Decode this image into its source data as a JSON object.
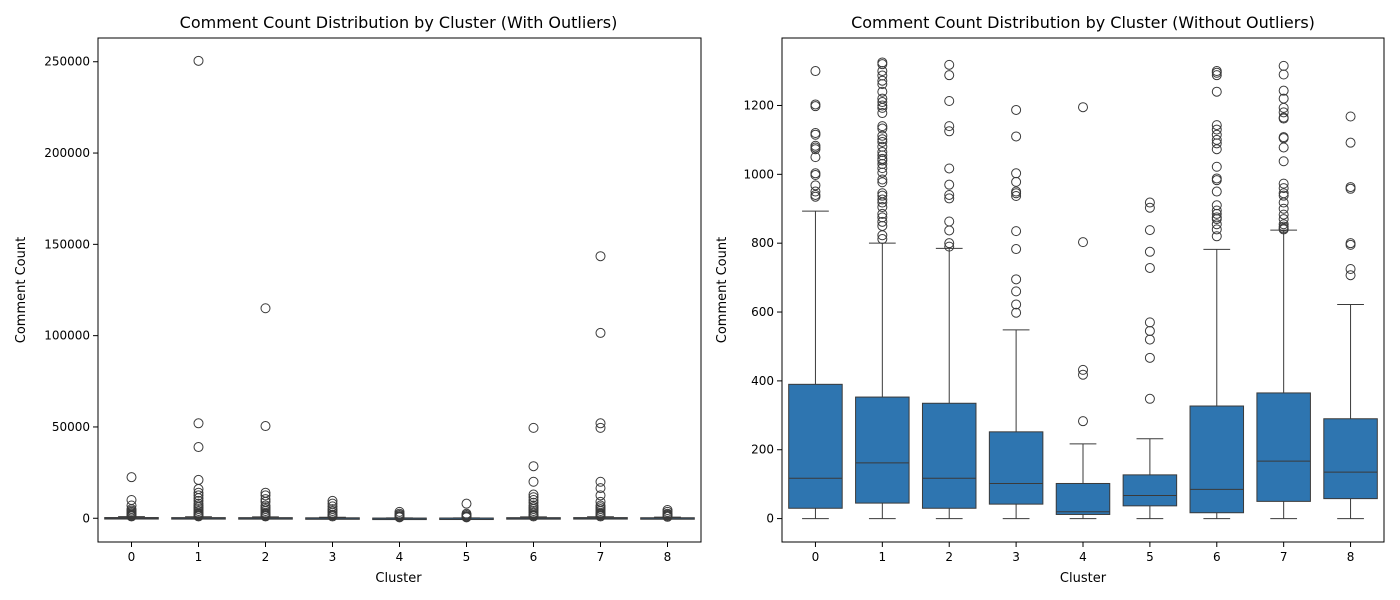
{
  "chart_data": [
    {
      "type": "box",
      "title": "Comment Count Distribution by Cluster (With Outliers)",
      "xlabel": "Cluster",
      "ylabel": "Comment Count",
      "categories": [
        "0",
        "1",
        "2",
        "3",
        "4",
        "5",
        "6",
        "7",
        "8"
      ],
      "ylim": [
        -13000,
        263000
      ],
      "yticks": [
        0,
        50000,
        100000,
        150000,
        200000,
        250000
      ],
      "ytick_labels": [
        "0",
        "50000",
        "100000",
        "150000",
        "200000",
        "250000"
      ],
      "box_color": "#2e75b0",
      "boxes": [
        {
          "min": 0,
          "q1": 30,
          "median": 117,
          "q3": 390,
          "max": 893
        },
        {
          "min": 0,
          "q1": 45,
          "median": 162,
          "q3": 353,
          "max": 800
        },
        {
          "min": 0,
          "q1": 30,
          "median": 117,
          "q3": 335,
          "max": 785
        },
        {
          "min": 0,
          "q1": 42,
          "median": 102,
          "q3": 252,
          "max": 548
        },
        {
          "min": 0,
          "q1": 12,
          "median": 20,
          "q3": 102,
          "max": 217
        },
        {
          "min": 0,
          "q1": 37,
          "median": 67,
          "q3": 127,
          "max": 232
        },
        {
          "min": 0,
          "q1": 17,
          "median": 85,
          "q3": 327,
          "max": 782
        },
        {
          "min": 0,
          "q1": 50,
          "median": 167,
          "q3": 365,
          "max": 838
        },
        {
          "min": 0,
          "q1": 58,
          "median": 135,
          "q3": 290,
          "max": 622
        }
      ],
      "outliers": [
        [
          22500,
          10000,
          7000,
          5000,
          4200,
          3500,
          2800,
          2200,
          1800,
          1400,
          1200,
          1000
        ],
        [
          250500,
          52000,
          39000,
          21000,
          16000,
          14000,
          12500,
          11000,
          9500,
          8000,
          7000,
          6000,
          5000,
          4000,
          3000,
          2500,
          2000,
          1500,
          1200,
          1000
        ],
        [
          115000,
          50500,
          14000,
          12500,
          10500,
          9000,
          7000,
          6000,
          5000,
          4000,
          3000,
          2500,
          2000,
          1500,
          1200,
          1000
        ],
        [
          9500,
          8000,
          6500,
          5000,
          4000,
          3000,
          2000,
          1500,
          1000
        ],
        [
          3500,
          2500,
          1800,
          1200,
          800,
          500
        ],
        [
          8000,
          2500,
          1800,
          1200,
          800,
          500
        ],
        [
          49500,
          28500,
          20000,
          13000,
          11500,
          10000,
          8500,
          7000,
          6000,
          5000,
          4000,
          3000,
          2000,
          1500,
          1000
        ],
        [
          143500,
          101500,
          52000,
          49500,
          20000,
          16500,
          12500,
          9000,
          7000,
          6000,
          5000,
          4000,
          3000,
          2500,
          2000,
          1500,
          1000
        ],
        [
          4500,
          3500,
          2500,
          2000,
          1500,
          1000,
          800
        ]
      ]
    },
    {
      "type": "box",
      "title": "Comment Count Distribution by Cluster (Without Outliers)",
      "xlabel": "Cluster",
      "ylabel": "Comment Count",
      "categories": [
        "0",
        "1",
        "2",
        "3",
        "4",
        "5",
        "6",
        "7",
        "8"
      ],
      "ylim": [
        -68,
        1396
      ],
      "yticks": [
        0,
        200,
        400,
        600,
        800,
        1000,
        1200
      ],
      "ytick_labels": [
        "0",
        "200",
        "400",
        "600",
        "800",
        "1000",
        "1200"
      ],
      "box_color": "#2e75b0",
      "boxes": [
        {
          "min": 0,
          "q1": 30,
          "median": 117,
          "q3": 390,
          "max": 893
        },
        {
          "min": 0,
          "q1": 45,
          "median": 162,
          "q3": 353,
          "max": 800
        },
        {
          "min": 0,
          "q1": 30,
          "median": 117,
          "q3": 335,
          "max": 785
        },
        {
          "min": 0,
          "q1": 42,
          "median": 102,
          "q3": 252,
          "max": 548
        },
        {
          "min": 0,
          "q1": 12,
          "median": 20,
          "q3": 102,
          "max": 217
        },
        {
          "min": 0,
          "q1": 37,
          "median": 67,
          "q3": 127,
          "max": 232
        },
        {
          "min": 0,
          "q1": 17,
          "median": 85,
          "q3": 327,
          "max": 782
        },
        {
          "min": 0,
          "q1": 50,
          "median": 167,
          "q3": 365,
          "max": 838
        },
        {
          "min": 0,
          "q1": 58,
          "median": 135,
          "q3": 290,
          "max": 622
        }
      ],
      "outliers": [
        [
          1300,
          1203,
          1198,
          1120,
          1115,
          1083,
          1078,
          1073,
          1050,
          1003,
          998,
          968,
          950,
          940,
          935
        ],
        [
          1325,
          1320,
          1300,
          1287,
          1272,
          1262,
          1240,
          1220,
          1210,
          1200,
          1193,
          1178,
          1140,
          1133,
          1112,
          1102,
          1094,
          1080,
          1065,
          1055,
          1045,
          1040,
          1030,
          1018,
          1005,
          985,
          977,
          945,
          938,
          927,
          918,
          905,
          885,
          875,
          862,
          850,
          823,
          812
        ],
        [
          1318,
          1288,
          1213,
          1140,
          1125,
          1017,
          970,
          940,
          930,
          863,
          837,
          800,
          790
        ],
        [
          1187,
          1110,
          1003,
          978,
          950,
          945,
          937,
          835,
          783,
          695,
          660,
          622,
          598
        ],
        [
          1195,
          803,
          432,
          418,
          283
        ],
        [
          918,
          903,
          838,
          775,
          728,
          570,
          545,
          520,
          467,
          348
        ],
        [
          1300,
          1295,
          1288,
          1240,
          1143,
          1130,
          1115,
          1100,
          1090,
          1073,
          1022,
          988,
          983,
          950,
          910,
          895,
          885,
          875,
          870,
          855,
          840,
          820
        ],
        [
          1315,
          1290,
          1243,
          1220,
          1193,
          1180,
          1165,
          1162,
          1108,
          1105,
          1078,
          1038,
          973,
          960,
          945,
          938,
          918,
          900,
          883,
          870,
          855,
          848,
          843,
          840
        ],
        [
          1168,
          1092,
          963,
          958,
          800,
          795,
          725,
          707
        ]
      ]
    }
  ]
}
